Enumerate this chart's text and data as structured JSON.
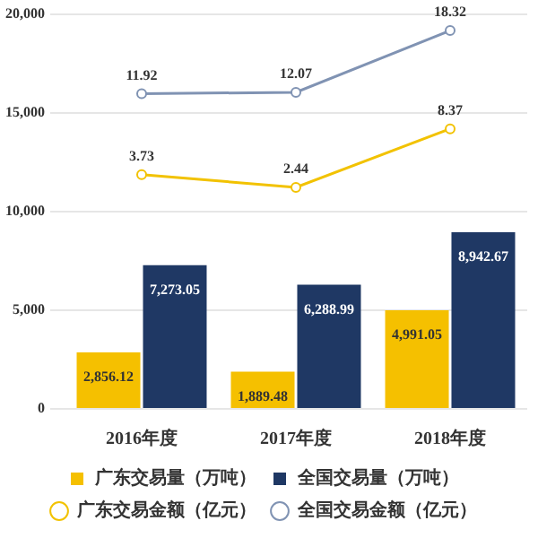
{
  "chart_data": {
    "type": "bar",
    "categories": [
      "2016年度",
      "2017年度",
      "2018年度"
    ],
    "series": [
      {
        "name": "广东交易量（万吨）",
        "color": "#f5c000",
        "values": [
          2856.12,
          1889.48,
          4991.05
        ],
        "value_labels": [
          "2,856.12",
          "1,889.48",
          "4,991.05"
        ]
      },
      {
        "name": "全国交易量（万吨）",
        "color": "#1f3864",
        "values": [
          7273.05,
          6288.99,
          8942.67
        ],
        "value_labels": [
          "7,273.05",
          "6,288.99",
          "8,942.67"
        ]
      },
      {
        "name": "广东交易金额（亿元）",
        "type": "line",
        "axis": "y2",
        "color": "#f2c200",
        "values": [
          3.73,
          2.44,
          8.37
        ],
        "value_labels": [
          "3.73",
          "2.44",
          "8.37"
        ]
      },
      {
        "name": "全国交易金额（亿元）",
        "type": "line",
        "axis": "y2",
        "color": "#8093b3",
        "values": [
          11.92,
          12.07,
          18.32
        ],
        "value_labels": [
          "11.92",
          "12.07",
          "18.32"
        ]
      }
    ],
    "ylim": [
      0,
      20000
    ],
    "yticks": [
      0,
      {
        "value": 5000,
        "label": "5,000"
      },
      {
        "value": 10000,
        "label": "10,000"
      },
      {
        "value": 15000,
        "label": "15,000"
      },
      {
        "value": 20000,
        "label": "20,000"
      }
    ],
    "y2lim": [
      -20,
      20
    ],
    "grid": "y",
    "legend": "bottom",
    "marker": "circle"
  }
}
